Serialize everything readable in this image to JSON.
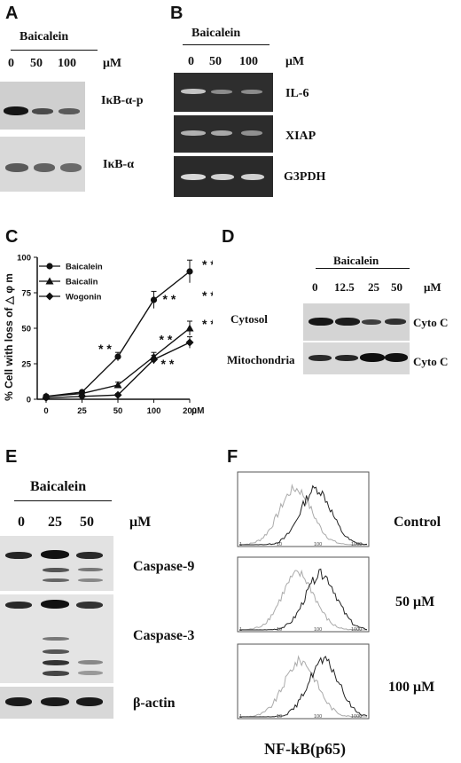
{
  "panels": {
    "A": {
      "letter": "A",
      "treatment": "Baicalein",
      "concentrations": [
        "0",
        "50",
        "100"
      ],
      "unit": "μM",
      "blots": [
        "IκB-α-p",
        "IκB-α"
      ]
    },
    "B": {
      "letter": "B",
      "treatment": "Baicalein",
      "concentrations": [
        "0",
        "50",
        "100"
      ],
      "unit": "μM",
      "gels": [
        "IL-6",
        "XIAP",
        "G3PDH"
      ]
    },
    "C": {
      "letter": "C",
      "significance_mark": "* *"
    },
    "D": {
      "letter": "D",
      "treatment": "Baicalein",
      "concentrations": [
        "0",
        "12.5",
        "25",
        "50"
      ],
      "unit": "μM",
      "rows": [
        {
          "compartment": "Cytosol",
          "protein": "Cyto C"
        },
        {
          "compartment": "Mitochondria",
          "protein": "Cyto C"
        }
      ]
    },
    "E": {
      "letter": "E",
      "treatment": "Baicalein",
      "concentrations": [
        "0",
        "25",
        "50"
      ],
      "unit": "μM",
      "blots": [
        "Caspase-9",
        "Caspase-3",
        "β-actin"
      ]
    },
    "F": {
      "letter": "F",
      "conditions": [
        "Control",
        "50 μM",
        "100 μM"
      ],
      "xlabel": "NF-kB(p65)",
      "tick_labels": [
        "1",
        "10",
        "100",
        "1000"
      ]
    }
  },
  "chart_data": {
    "type": "line",
    "title": "",
    "ylabel": "% Cell with loss of △ φ m",
    "xlabel": "μM",
    "categories": [
      "0",
      "25",
      "50",
      "100",
      "200"
    ],
    "ylim": [
      0,
      100
    ],
    "yticks": [
      "0",
      "25",
      "50",
      "75",
      "100"
    ],
    "legend_position": "top-left",
    "series": [
      {
        "name": "Baicalein",
        "marker": "circle",
        "values": [
          2,
          5,
          30,
          70,
          90
        ],
        "errors": [
          1,
          1,
          3,
          6,
          8
        ]
      },
      {
        "name": "Baicalin",
        "marker": "triangle",
        "values": [
          2,
          4,
          10,
          30,
          50
        ],
        "errors": [
          1,
          1,
          2,
          3,
          5
        ]
      },
      {
        "name": "Wogonin",
        "marker": "diamond",
        "values": [
          1,
          2,
          3,
          28,
          40
        ],
        "errors": [
          1,
          1,
          1,
          3,
          4
        ]
      }
    ],
    "annotations": [
      {
        "text": "* *",
        "x": "50",
        "near": 30
      },
      {
        "text": "* *",
        "x": "100",
        "near": 70
      },
      {
        "text": "* *",
        "x": "100",
        "near": 30
      },
      {
        "text": "* *",
        "x": "100",
        "near": 28
      },
      {
        "text": "* *",
        "x": "200",
        "near": 90
      },
      {
        "text": "* *",
        "x": "200",
        "near": 50
      },
      {
        "text": "* *",
        "x": "200",
        "near": 40
      }
    ]
  }
}
